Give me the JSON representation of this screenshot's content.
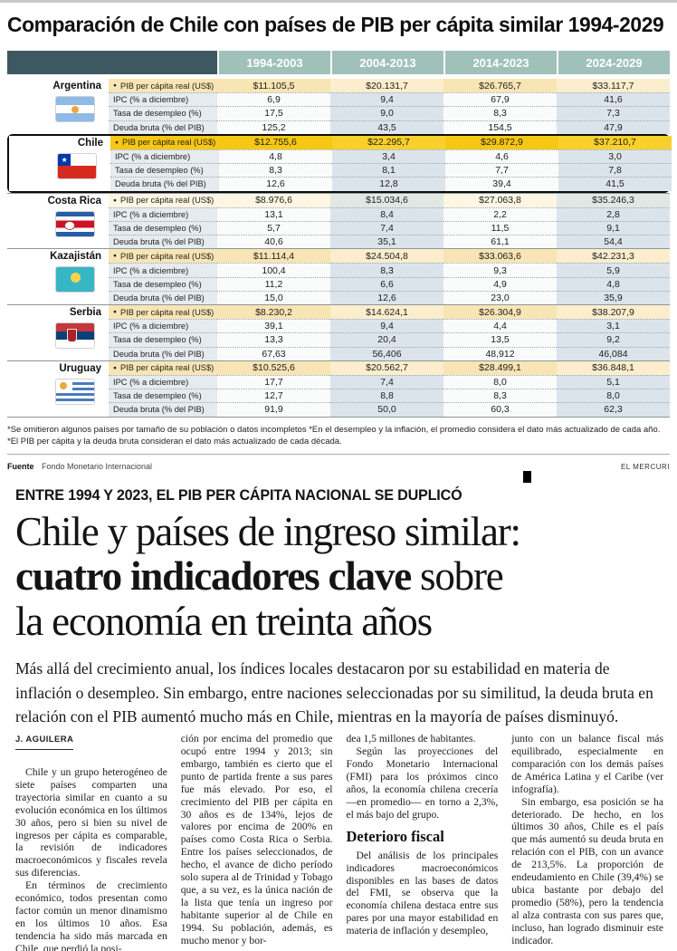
{
  "colors": {
    "header_dark": "#3E5862",
    "header_sage": "#9FC1BA",
    "chile_gold": "#F6C713",
    "pib_cream": "#F8E5B4",
    "row_alt_blue": "#DCE4EB",
    "label_blue": "#E6EBEF"
  },
  "infographic": {
    "title": "Comparación de Chile con países de PIB per cápita similar 1994-2029",
    "table": {
      "bullet": "●",
      "periods": [
        "1994-2003",
        "2004-2013",
        "2014-2023",
        "2024-2029"
      ],
      "indicators": [
        "PIB per cápita real (US$)",
        "IPC (% a diciembre)",
        "Tasa de desempleo (%)",
        "Deuda bruta (% del PIB)"
      ],
      "countries": [
        {
          "name": "Argentina",
          "flag_id": "argentina",
          "style": "default",
          "rows": [
            [
              "$11.105,5",
              "$20.131,7",
              "$26.765,7",
              "$33.117,7"
            ],
            [
              "6,9",
              "9,4",
              "67,9",
              "41,6"
            ],
            [
              "17,5",
              "9,0",
              "8,3",
              "7,3"
            ],
            [
              "125,2",
              "43,5",
              "154,5",
              "47,9"
            ]
          ]
        },
        {
          "name": "Chile",
          "flag_id": "chile",
          "style": "chile",
          "rows": [
            [
              "$12.755,6",
              "$22.295,7",
              "$29.872,9",
              "$37.210,7"
            ],
            [
              "4,8",
              "3,4",
              "4,6",
              "3,0"
            ],
            [
              "8,3",
              "8,1",
              "7,7",
              "7,8"
            ],
            [
              "12,6",
              "12,8",
              "39,4",
              "41,5"
            ]
          ]
        },
        {
          "name": "Costa Rica",
          "flag_id": "costarica",
          "style": "pale",
          "rows": [
            [
              "$8.976,6",
              "$15.034,6",
              "$27.063,8",
              "$35.246,3"
            ],
            [
              "13,1",
              "8,4",
              "2,2",
              "2,8"
            ],
            [
              "5,7",
              "7,4",
              "11,5",
              "9,1"
            ],
            [
              "40,6",
              "35,1",
              "61,1",
              "54,4"
            ]
          ]
        },
        {
          "name": "Kazajistán",
          "flag_id": "kazakhstan",
          "style": "default",
          "rows": [
            [
              "$11.114,4",
              "$24.504,8",
              "$33.063,6",
              "$42.231,3"
            ],
            [
              "100,4",
              "8,3",
              "9,3",
              "5,9"
            ],
            [
              "11,2",
              "6,6",
              "4,9",
              "4,8"
            ],
            [
              "15,0",
              "12,6",
              "23,0",
              "35,9"
            ]
          ]
        },
        {
          "name": "Serbia",
          "flag_id": "serbia",
          "style": "default",
          "rows": [
            [
              "$8.230,2",
              "$14.624,1",
              "$26.304,9",
              "$38.207,9"
            ],
            [
              "39,1",
              "9,4",
              "4,4",
              "3,1"
            ],
            [
              "13,3",
              "20,4",
              "13,5",
              "9,2"
            ],
            [
              "67,63",
              "56,406",
              "48,912",
              "46,084"
            ]
          ]
        },
        {
          "name": "Uruguay",
          "flag_id": "uruguay",
          "style": "default",
          "rows": [
            [
              "$10.525,6",
              "$20.562,7",
              "$28.499,1",
              "$36.848,1"
            ],
            [
              "17,7",
              "7,4",
              "8,0",
              "5,1"
            ],
            [
              "12,7",
              "8,8",
              "8,3",
              "8,0"
            ],
            [
              "91,9",
              "50,0",
              "60,3",
              "62,3"
            ]
          ]
        }
      ]
    },
    "footnotes": [
      "*Se omitieron algunos países por tamaño de su población o datos incompletos  *En el desempleo y la inflación, el promedio considera el dato más actualizado de cada año.",
      "*El PIB per cápita y la deuda bruta consideran el dato más actualizado de cada década."
    ],
    "source_label": "Fuente",
    "source": "Fondo Monetario Internacional",
    "credit": "EL MERCURI"
  },
  "article": {
    "kicker": "ENTRE 1994 Y 2023, EL PIB PER CÁPITA NACIONAL SE DUPLICÓ",
    "headline": {
      "line1": "Chile y países de ingreso similar:",
      "line2_bold": "cuatro indicadores clave",
      "line2_rest": " sobre",
      "line3": "la economía en treinta años"
    },
    "deck": "Más allá del crecimiento anual, los índices locales destacaron por su estabilidad en materia de inflación o desempleo. Sin embargo, entre naciones seleccionadas por su similitud, la deuda bruta en relación con el PIB aumentó mucho más en Chile, mientras en la mayoría de países disminuyó.",
    "byline": "J. AGUILERA",
    "columns": [
      {
        "blocks": [
          {
            "type": "byline",
            "text": "J. AGUILERA"
          },
          {
            "type": "p",
            "indent": true,
            "gap": true,
            "text": "Chile y un grupo heterogéneo de siete países comparten una trayectoria similar en cuanto a su evolución económica en los últimos 30 años, pero si bien su nivel de ingresos per cápita es comparable, la revisión de indicadores macroeconómicos y fiscales revela sus diferencias."
          },
          {
            "type": "p",
            "indent": true,
            "text": "En términos de crecimiento económico, todos presentan como factor común un menor dinamismo en los últimos 10 años. Esa tendencia ha sido más marcada en Chile, que perdió la posi-"
          }
        ]
      },
      {
        "blocks": [
          {
            "type": "p",
            "text": "ción por encima del promedio que ocupó entre 1994 y 2013; sin embargo, también es cierto que el punto de partida frente a sus pares fue más elevado. Por eso, el crecimiento del PIB per cápita en 30 años es de 134%, lejos de valores por encima de 200% en países como Costa Rica o Serbia. Entre los países seleccionados, de hecho, el avance de dicho período solo supera al de Trinidad y Tobago que, a su vez, es la única nación de la lista que tenía un ingreso por habitante superior al de Chile en 1994. Su población, además, es mucho menor y bor-"
          }
        ]
      },
      {
        "blocks": [
          {
            "type": "p",
            "text": "dea 1,5 millones de habitantes."
          },
          {
            "type": "p",
            "indent": true,
            "text": "Según las proyecciones del Fondo Monetario Internacional (FMI) para los próximos cinco años, la economía chilena crecería —en promedio— en torno a 2,3%, el más bajo del grupo."
          },
          {
            "type": "subhead",
            "text": "Deterioro fiscal"
          },
          {
            "type": "p",
            "indent": true,
            "text": "Del análisis de los principales indicadores macroeconómicos disponibles en las bases de datos del FMI, se observa que la economía chilena destaca entre sus pares por una mayor estabilidad en materia de inflación y desempleo,"
          }
        ]
      },
      {
        "blocks": [
          {
            "type": "p",
            "text": "junto con un balance fiscal más equilibrado, especialmente en comparación con los demás países de América Latina y el Caribe (ver infografía)."
          },
          {
            "type": "p",
            "indent": true,
            "text": "Sin embargo, esa posición se ha deteriorado. De hecho, en los últimos 30 años, Chile es el país que más aumentó su deuda bruta en relación con el PIB, con un avance de 213,5%. La proporción de endeudamiento en Chile (39,4%) se ubica bastante por debajo del promedio (58%), pero la tendencia al alza contrasta con sus pares que, incluso, han logrado disminuir este indicador."
          }
        ]
      }
    ]
  }
}
